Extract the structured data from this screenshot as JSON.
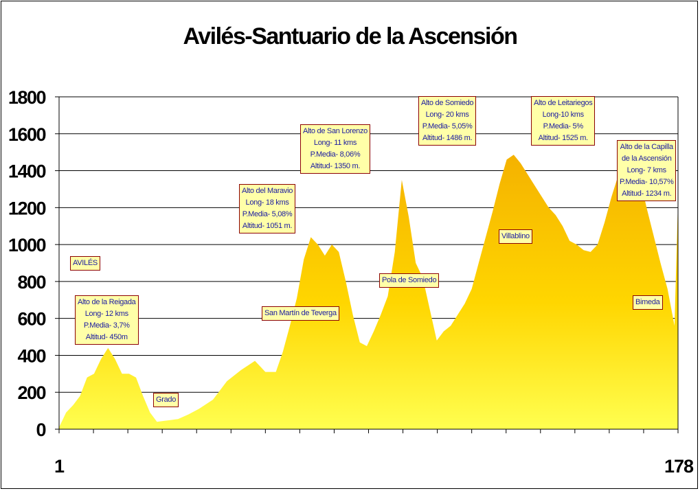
{
  "chart_data": {
    "type": "area",
    "title": "Avilés-Santuario de la Ascensión",
    "xlabel": "",
    "ylabel": "",
    "ylim": [
      0,
      1800
    ],
    "xlim": [
      1,
      178
    ],
    "yticks": [
      "0",
      "200",
      "400",
      "600",
      "800",
      "1000",
      "1200",
      "1400",
      "1600",
      "1800"
    ],
    "xtick_labels": [
      "1",
      "178"
    ],
    "grid": true,
    "fill_color": "#ffd200",
    "series": [
      {
        "x": [
          1,
          3,
          5,
          7,
          9,
          11,
          13,
          15,
          17,
          19,
          21,
          23,
          25,
          27,
          29,
          31,
          33,
          35,
          38,
          41,
          45,
          49,
          53,
          57,
          60,
          63,
          65,
          67,
          69,
          71,
          73,
          75,
          77,
          79,
          81,
          83,
          85,
          87,
          89,
          91,
          93,
          95,
          97,
          99,
          101,
          103,
          105,
          107,
          109,
          111,
          113,
          115,
          117,
          119,
          121,
          123,
          125,
          127,
          129,
          131,
          133,
          135,
          137,
          139,
          141,
          143,
          145,
          147,
          149,
          151,
          153,
          155,
          157,
          159,
          161,
          163,
          165,
          167,
          169,
          171,
          173,
          175,
          177,
          178
        ],
        "y": [
          10,
          90,
          130,
          180,
          280,
          300,
          380,
          440,
          380,
          300,
          300,
          280,
          180,
          90,
          40,
          45,
          50,
          55,
          80,
          110,
          160,
          260,
          320,
          370,
          310,
          310,
          420,
          560,
          710,
          920,
          1040,
          1000,
          940,
          1000,
          960,
          800,
          620,
          470,
          450,
          530,
          620,
          720,
          960,
          1350,
          1150,
          900,
          820,
          650,
          480,
          530,
          560,
          620,
          680,
          760,
          900,
          1040,
          1180,
          1330,
          1460,
          1486,
          1440,
          1380,
          1320,
          1260,
          1200,
          1160,
          1100,
          1020,
          1000,
          970,
          960,
          1000,
          1120,
          1260,
          1380,
          1525,
          1480,
          1370,
          1200,
          1050,
          900,
          760,
          560,
          1234
        ]
      }
    ],
    "annotations": [
      {
        "lines": [
          "AVILÉS"
        ]
      },
      {
        "lines": [
          "Alto de la Reigada",
          "Long- 12 kms",
          "P.Media- 3,7%",
          "Altitud- 450m"
        ]
      },
      {
        "lines": [
          "Grado"
        ]
      },
      {
        "lines": [
          "Alto del Maravio",
          "Long- 18 kms",
          "P.Media- 5,08%",
          "Altitud- 1051 m."
        ]
      },
      {
        "lines": [
          "San Martín de Teverga"
        ]
      },
      {
        "lines": [
          "Alto de San Lorenzo",
          "Long- 11 kms",
          "P.Media- 8,06%",
          "Altitud- 1350 m."
        ]
      },
      {
        "lines": [
          "Pola de Somiedo"
        ]
      },
      {
        "lines": [
          "Alto de Somiedo",
          "Long- 20 kms",
          "P.Media- 5,05%",
          "Altitud- 1486 m."
        ]
      },
      {
        "lines": [
          "Villablino"
        ]
      },
      {
        "lines": [
          "Alto de Leitariegos",
          "Long-10 kms",
          "P.Media- 5%",
          "Altitud- 1525 m."
        ]
      },
      {
        "lines": [
          "Alto de la Capilla",
          "de la Ascensión",
          "Long- 7 kms",
          "P.Media- 10,57%",
          "Altitud- 1234 m."
        ]
      },
      {
        "lines": [
          "Bimeda"
        ]
      }
    ]
  }
}
